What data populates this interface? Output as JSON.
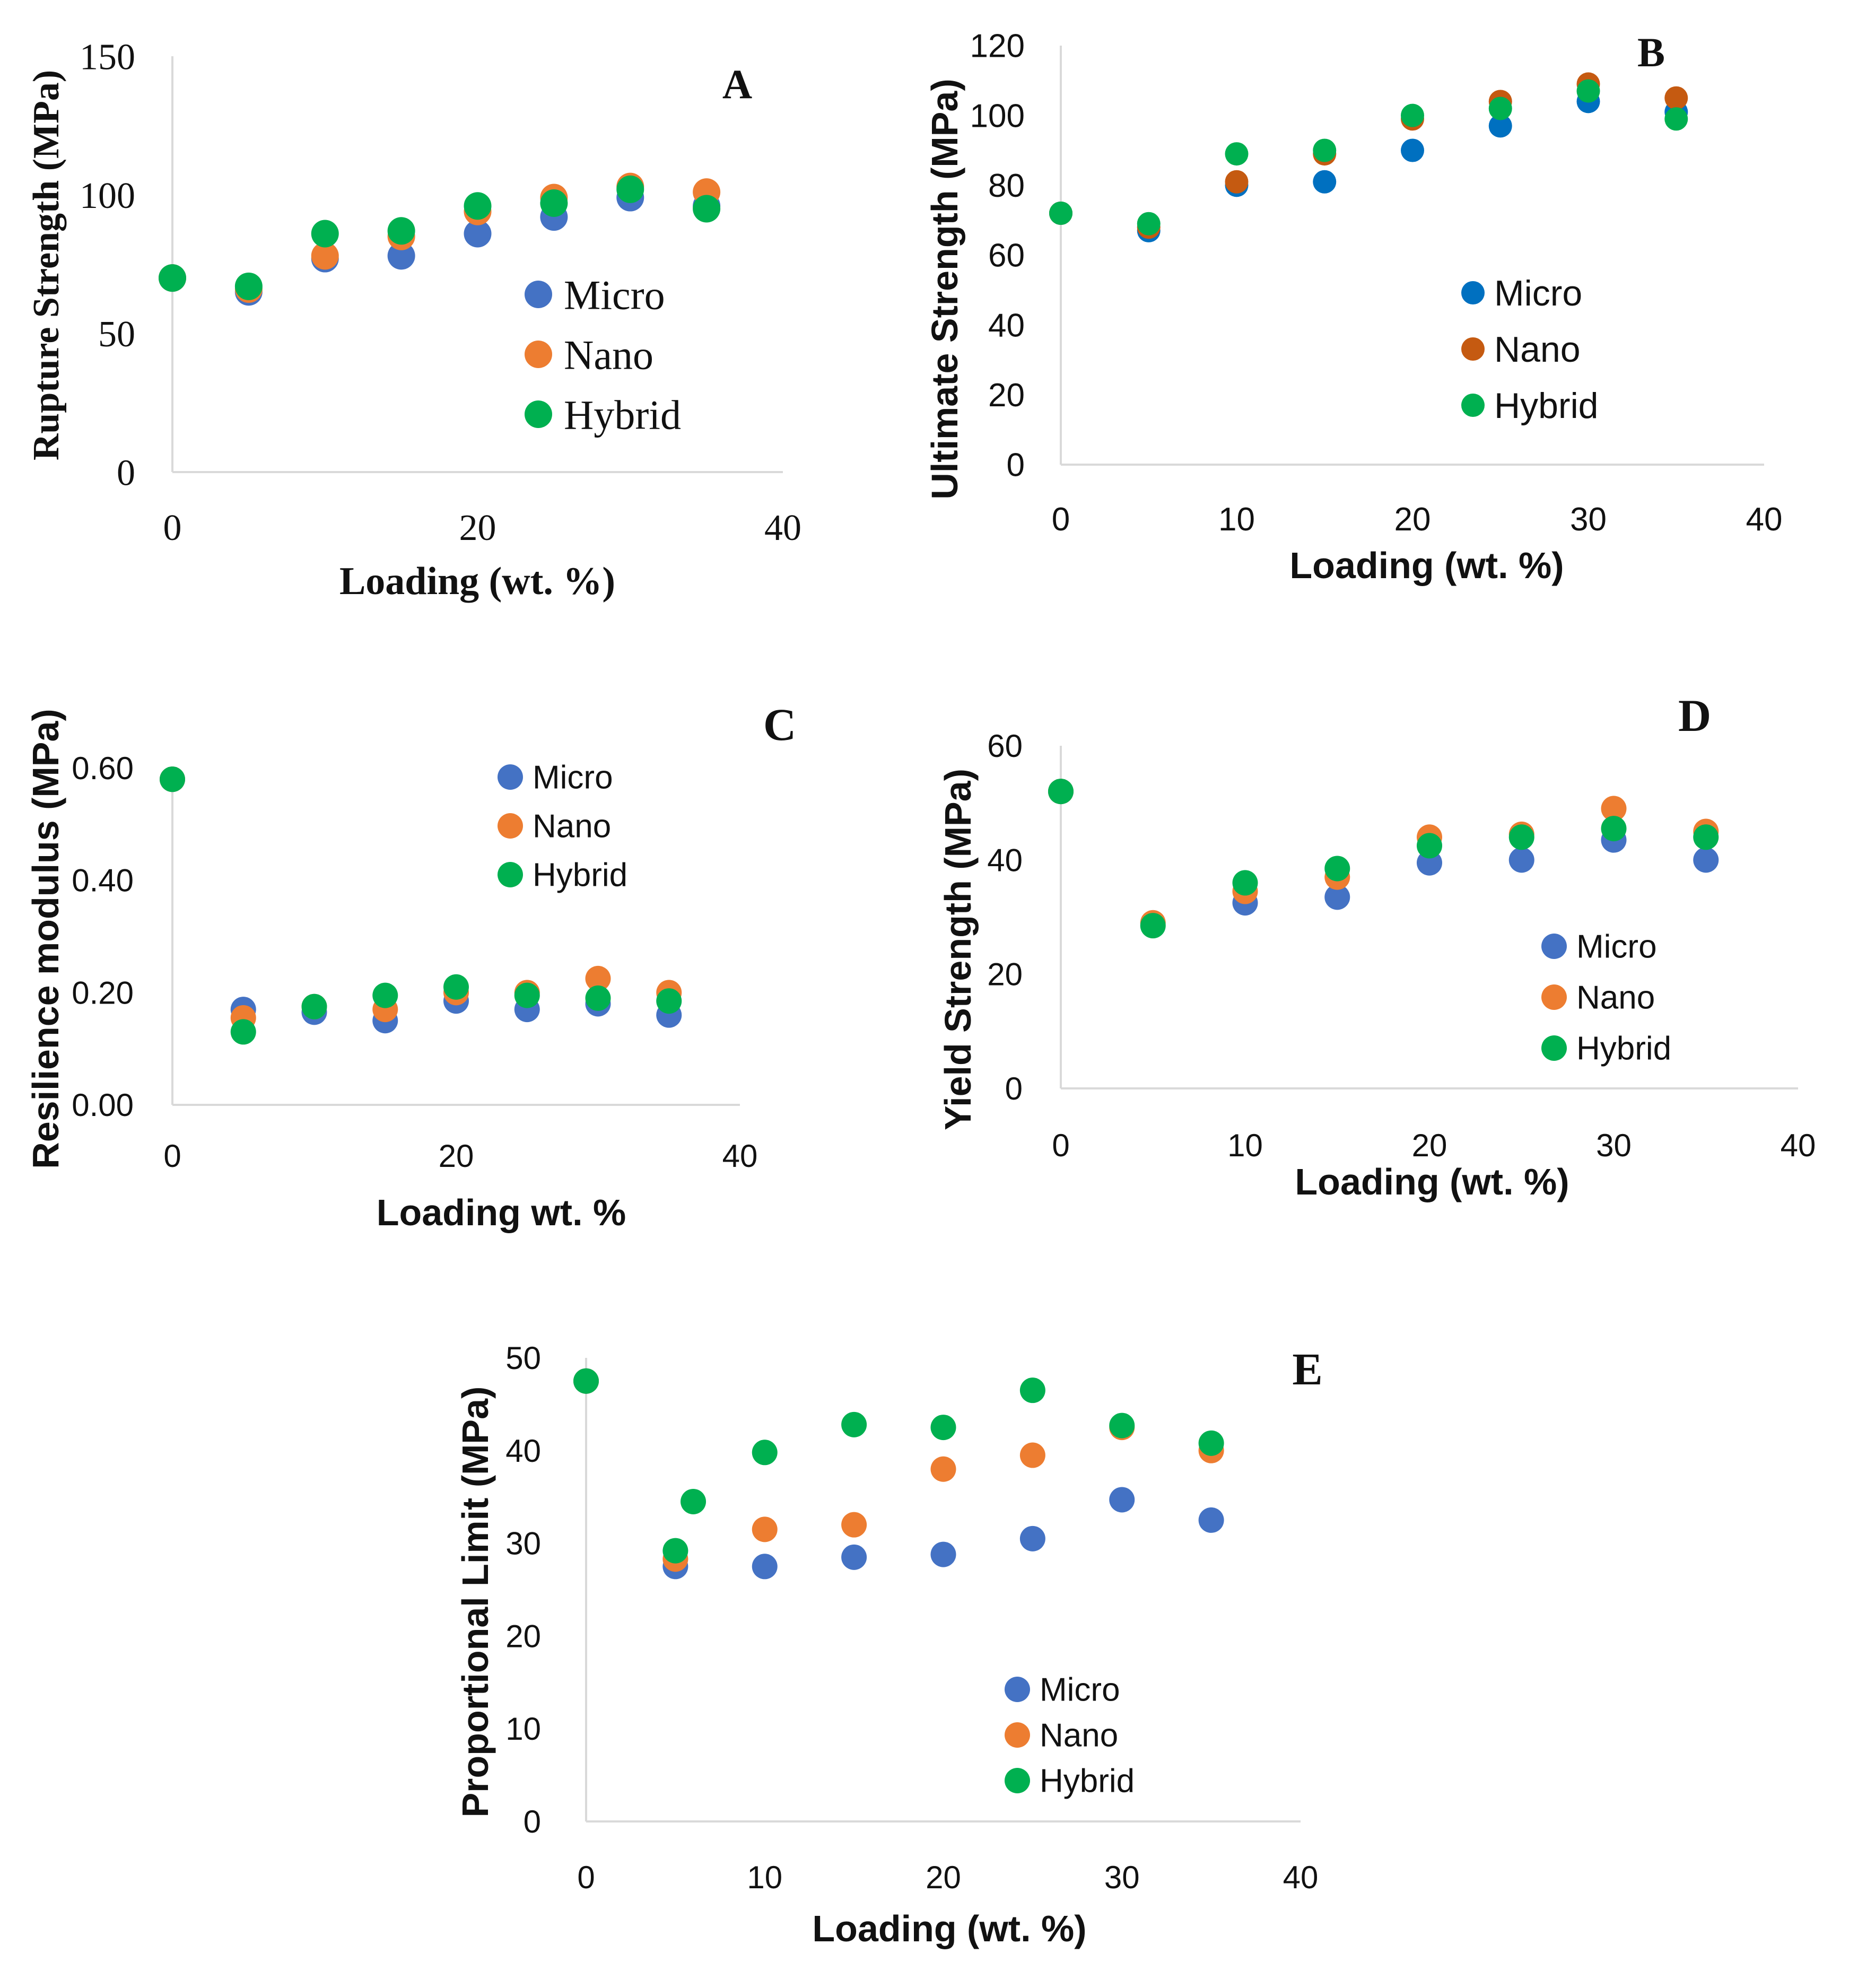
{
  "chart_data": [
    {
      "id": "A",
      "panel_label": "A",
      "type": "scatter",
      "xlabel": "Loading (wt. %)",
      "ylabel": "Rupture Strength (MPa)",
      "xlim": [
        0,
        40
      ],
      "ylim": [
        0,
        150
      ],
      "xticks": [
        "0",
        "20",
        "40"
      ],
      "yticks": [
        "0",
        "50",
        "100",
        "150"
      ],
      "legend": [
        "Micro",
        "Nano",
        "Hybrid"
      ],
      "grid": false,
      "series": [
        {
          "name": "Micro",
          "color": "#4472C4",
          "x": [
            0,
            5,
            10,
            15,
            20,
            25,
            30,
            35
          ],
          "y": [
            70,
            65,
            77,
            78,
            86,
            92,
            99,
            96
          ]
        },
        {
          "name": "Nano",
          "color": "#ED7D31",
          "x": [
            0,
            5,
            10,
            15,
            20,
            25,
            30,
            35
          ],
          "y": [
            70,
            66,
            78,
            85,
            94,
            99,
            103,
            101
          ]
        },
        {
          "name": "Hybrid",
          "color": "#00B050",
          "x": [
            0,
            5,
            10,
            15,
            20,
            25,
            30,
            35
          ],
          "y": [
            70,
            67,
            86,
            87,
            96,
            97,
            102,
            95
          ]
        }
      ]
    },
    {
      "id": "B",
      "panel_label": "B",
      "type": "scatter",
      "xlabel": "Loading (wt. %)",
      "ylabel": "Ultimate Strength (MPa)",
      "xlim": [
        0,
        40
      ],
      "ylim": [
        0,
        120
      ],
      "xticks": [
        "0",
        "10",
        "20",
        "30",
        "40"
      ],
      "yticks": [
        "0",
        "20",
        "40",
        "60",
        "80",
        "100",
        "120"
      ],
      "legend": [
        "Micro",
        "Nano",
        "Hybrid"
      ],
      "grid": false,
      "series": [
        {
          "name": "Micro",
          "color": "#0070C0",
          "x": [
            0,
            5,
            10,
            15,
            20,
            25,
            30,
            35
          ],
          "y": [
            72,
            67,
            80,
            81,
            90,
            97,
            104,
            101
          ]
        },
        {
          "name": "Nano",
          "color": "#C55A11",
          "x": [
            0,
            5,
            10,
            15,
            20,
            25,
            30,
            35
          ],
          "y": [
            72,
            68,
            81,
            89,
            99,
            104,
            109,
            105
          ]
        },
        {
          "name": "Hybrid",
          "color": "#00B050",
          "x": [
            0,
            5,
            10,
            15,
            20,
            25,
            30,
            35
          ],
          "y": [
            72,
            69,
            89,
            90,
            100,
            102,
            107,
            99
          ]
        }
      ]
    },
    {
      "id": "C",
      "panel_label": "C",
      "type": "scatter",
      "xlabel": "Loading wt. %",
      "ylabel": "Resilience modulus (MPa)",
      "xlim": [
        0,
        40
      ],
      "ylim": [
        0,
        0.6
      ],
      "xticks": [
        "0",
        "20",
        "40"
      ],
      "yticks": [
        "0.00",
        "0.20",
        "0.40",
        "0.60"
      ],
      "legend": [
        "Micro",
        "Nano",
        "Hybrid"
      ],
      "grid": false,
      "series": [
        {
          "name": "Micro",
          "color": "#4472C4",
          "x": [
            0,
            5,
            10,
            15,
            20,
            25,
            30,
            35
          ],
          "y": [
            0.58,
            0.17,
            0.165,
            0.15,
            0.185,
            0.17,
            0.18,
            0.16
          ]
        },
        {
          "name": "Nano",
          "color": "#ED7D31",
          "x": [
            0,
            5,
            10,
            15,
            20,
            25,
            30,
            35
          ],
          "y": [
            0.58,
            0.155,
            0.175,
            0.17,
            0.2,
            0.2,
            0.225,
            0.2
          ]
        },
        {
          "name": "Hybrid",
          "color": "#00B050",
          "x": [
            0,
            5,
            10,
            15,
            20,
            25,
            30,
            35
          ],
          "y": [
            0.58,
            0.13,
            0.175,
            0.195,
            0.21,
            0.195,
            0.19,
            0.185
          ]
        }
      ]
    },
    {
      "id": "D",
      "panel_label": "D",
      "type": "scatter",
      "xlabel": "Loading (wt. %)",
      "ylabel": "Yield Strength (MPa)",
      "xlim": [
        0,
        40
      ],
      "ylim": [
        0,
        60
      ],
      "xticks": [
        "0",
        "10",
        "20",
        "30",
        "40"
      ],
      "yticks": [
        "0",
        "20",
        "40",
        "60"
      ],
      "legend": [
        "Micro",
        "Nano",
        "Hybrid"
      ],
      "grid": false,
      "series": [
        {
          "name": "Micro",
          "color": "#4472C4",
          "x": [
            0,
            10,
            15,
            20,
            25,
            30,
            35
          ],
          "y": [
            52,
            32.5,
            33.5,
            39.5,
            40,
            43.5,
            40
          ]
        },
        {
          "name": "Nano",
          "color": "#ED7D31",
          "x": [
            0,
            5,
            10,
            15,
            20,
            25,
            30,
            35
          ],
          "y": [
            52,
            29,
            34.5,
            37,
            44,
            44.5,
            49,
            45
          ]
        },
        {
          "name": "Hybrid",
          "color": "#00B050",
          "x": [
            0,
            5,
            10,
            15,
            20,
            25,
            30,
            35
          ],
          "y": [
            52,
            28.5,
            36,
            38.5,
            42.5,
            44,
            45.5,
            44
          ]
        }
      ]
    },
    {
      "id": "E",
      "panel_label": "E",
      "type": "scatter",
      "xlabel": "Loading (wt. %)",
      "ylabel": "Proportional Limit (MPa)",
      "xlim": [
        0,
        40
      ],
      "ylim": [
        0,
        50
      ],
      "xticks": [
        "0",
        "10",
        "20",
        "30",
        "40"
      ],
      "yticks": [
        "0",
        "10",
        "20",
        "30",
        "40",
        "50"
      ],
      "legend": [
        "Micro",
        "Nano",
        "Hybrid"
      ],
      "grid": false,
      "series": [
        {
          "name": "Micro",
          "color": "#4472C4",
          "x": [
            0,
            5,
            10,
            15,
            20,
            25,
            30,
            35
          ],
          "y": [
            47.5,
            27.5,
            27.5,
            28.5,
            28.8,
            30.5,
            34.7,
            32.5
          ]
        },
        {
          "name": "Nano",
          "color": "#ED7D31",
          "x": [
            0,
            5,
            10,
            15,
            20,
            25,
            30,
            35
          ],
          "y": [
            47.5,
            28.3,
            31.5,
            32,
            38,
            39.5,
            42.5,
            40
          ]
        },
        {
          "name": "Hybrid",
          "color": "#00B050",
          "x": [
            0,
            5,
            6,
            10,
            15,
            20,
            25,
            30,
            35
          ],
          "y": [
            47.5,
            29.2,
            34.5,
            39.8,
            42.8,
            42.5,
            46.5,
            42.7,
            40.8
          ]
        }
      ]
    }
  ]
}
